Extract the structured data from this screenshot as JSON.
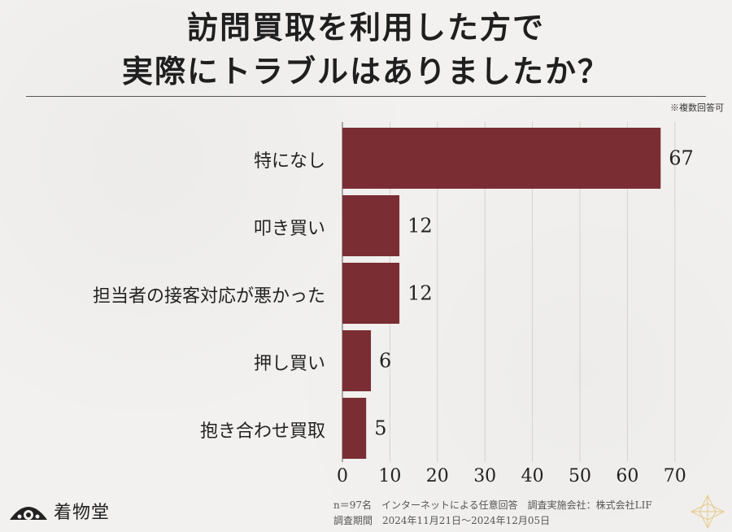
{
  "header": {
    "title_line1": "訪問買取を利用した方で",
    "title_line2": "実際にトラブルはありましたか？",
    "note": "※複数回答可"
  },
  "chart_data": {
    "type": "bar",
    "orientation": "horizontal",
    "categories": [
      "特になし",
      "叩き買い",
      "担当者の接客対応が悪かった",
      "押し買い",
      "抱き合わせ買取"
    ],
    "values": [
      67,
      12,
      12,
      6,
      5
    ],
    "xlim": [
      0,
      70
    ],
    "xticks": [
      0,
      10,
      20,
      30,
      40,
      50,
      60,
      70
    ],
    "grid": true,
    "bar_color": "#7a2d33",
    "title": "訪問買取を利用した方で 実際にトラブルはありましたか？"
  },
  "footer": {
    "line1": "n＝97名　インターネットによる任意回答　調査実施会社：株式会社LIF",
    "line2": "調査期間　2024年11月21日～2024年12月05日"
  },
  "logo": {
    "text": "着物堂"
  }
}
